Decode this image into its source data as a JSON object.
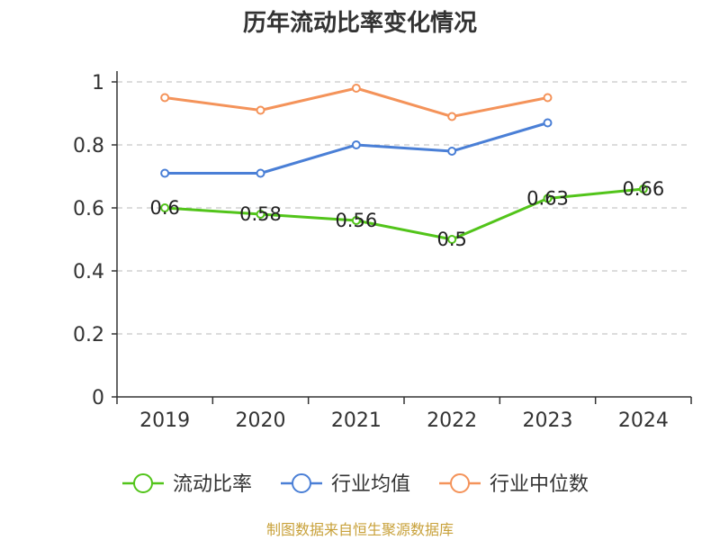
{
  "chart_data": {
    "type": "line",
    "title": "历年流动比率变化情况",
    "categories": [
      "2019",
      "2020",
      "2021",
      "2022",
      "2023",
      "2024"
    ],
    "ylim": [
      0,
      1
    ],
    "yticks": [
      "0",
      "0.2",
      "0.4",
      "0.6",
      "0.8",
      "1"
    ],
    "grid": true,
    "legend_position": "bottom",
    "series": [
      {
        "name": "流动比率",
        "color": "#52c41a",
        "values": [
          0.6,
          0.58,
          0.56,
          0.5,
          0.63,
          0.66
        ],
        "labels": [
          "0.6",
          "0.58",
          "0.56",
          "0.5",
          "0.63",
          "0.66"
        ]
      },
      {
        "name": "行业均值",
        "color": "#4a7fd6",
        "values": [
          0.71,
          0.71,
          0.8,
          0.78,
          0.87,
          null
        ]
      },
      {
        "name": "行业中位数",
        "color": "#f4935a",
        "values": [
          0.95,
          0.91,
          0.98,
          0.89,
          0.95,
          null
        ]
      }
    ]
  },
  "source_text": "制图数据来自恒生聚源数据库"
}
